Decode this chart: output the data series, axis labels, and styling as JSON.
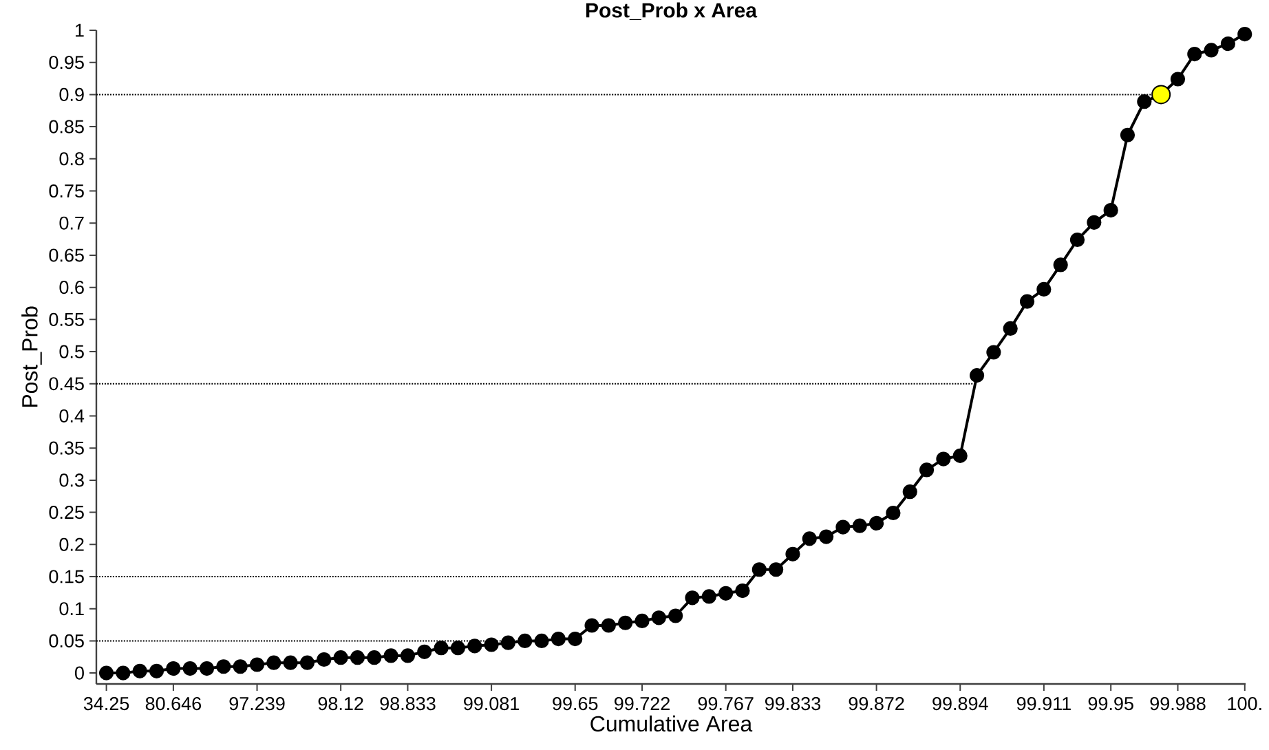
{
  "chart_data": {
    "type": "line",
    "title": "Post_Prob x Area",
    "xlabel": "Cumulative Area",
    "ylabel": "Post_Prob",
    "categories": [
      "34.25",
      null,
      null,
      null,
      "80.646",
      null,
      null,
      null,
      null,
      "97.239",
      null,
      null,
      null,
      null,
      "98.12",
      null,
      null,
      null,
      "98.833",
      null,
      null,
      null,
      null,
      "99.081",
      null,
      null,
      null,
      null,
      "99.65",
      null,
      null,
      null,
      "99.722",
      null,
      null,
      null,
      null,
      "99.767",
      null,
      null,
      null,
      "99.833",
      null,
      null,
      null,
      null,
      "99.872",
      null,
      null,
      null,
      null,
      "99.894",
      null,
      null,
      null,
      null,
      "99.911",
      null,
      null,
      null,
      "99.95",
      null,
      null,
      null,
      "99.988",
      null,
      null,
      null,
      "100."
    ],
    "series": [
      {
        "color": "#000000",
        "values": [
          0,
          0,
          0.003,
          0.003,
          0.007,
          0.007,
          0.007,
          0.01,
          0.01,
          0.013,
          0.016,
          0.016,
          0.016,
          0.021,
          0.024,
          0.024,
          0.024,
          0.027,
          0.027,
          0.033,
          0.039,
          0.039,
          0.042,
          0.044,
          0.047,
          0.05,
          0.05,
          0.053,
          0.053,
          0.074,
          0.074,
          0.078,
          0.081,
          0.086,
          0.089,
          0.117,
          0.119,
          0.124,
          0.128,
          0.161,
          0.161,
          0.185,
          0.209,
          0.212,
          0.227,
          0.229,
          0.233,
          0.249,
          0.282,
          0.316,
          0.333,
          0.338,
          0.463,
          0.499,
          0.536,
          0.578,
          0.597,
          0.635,
          0.674,
          0.701,
          0.72,
          0.837,
          0.889,
          0.9,
          0.924,
          0.963,
          0.969,
          0.979,
          0.994
        ]
      },
      {
        "type": "scatter",
        "color": "#ffff00",
        "values": [
          null,
          null,
          null,
          null,
          null,
          null,
          null,
          null,
          null,
          null,
          null,
          null,
          null,
          null,
          null,
          null,
          null,
          null,
          null,
          null,
          null,
          null,
          null,
          null,
          null,
          null,
          null,
          null,
          null,
          null,
          null,
          null,
          null,
          null,
          null,
          null,
          null,
          null,
          null,
          null,
          null,
          null,
          null,
          null,
          null,
          null,
          null,
          null,
          null,
          null,
          null,
          null,
          null,
          null,
          null,
          null,
          null,
          null,
          null,
          null,
          null,
          null,
          null,
          0.9,
          null,
          null,
          null,
          null,
          null
        ]
      }
    ],
    "ylim": [
      -0.017,
      1
    ],
    "yticks": [
      0,
      0.05,
      0.1,
      0.15,
      0.2,
      0.25,
      0.3,
      0.35,
      0.4,
      0.45,
      0.5,
      0.55,
      0.6,
      0.65,
      0.7,
      0.75,
      0.8,
      0.85,
      0.9,
      0.95,
      1
    ],
    "ref_lines": [
      {
        "axis": "y",
        "value": 0.05,
        "color": "#000000",
        "line_style": "dotted"
      },
      {
        "axis": "y",
        "value": 0.15,
        "color": "#000000",
        "line_style": "dotted"
      },
      {
        "axis": "y",
        "value": 0.45,
        "color": "#000000",
        "line_style": "dotted"
      },
      {
        "axis": "y",
        "value": 0.9,
        "color": "#000000",
        "line_style": "dotted"
      }
    ],
    "marker": "circle"
  }
}
